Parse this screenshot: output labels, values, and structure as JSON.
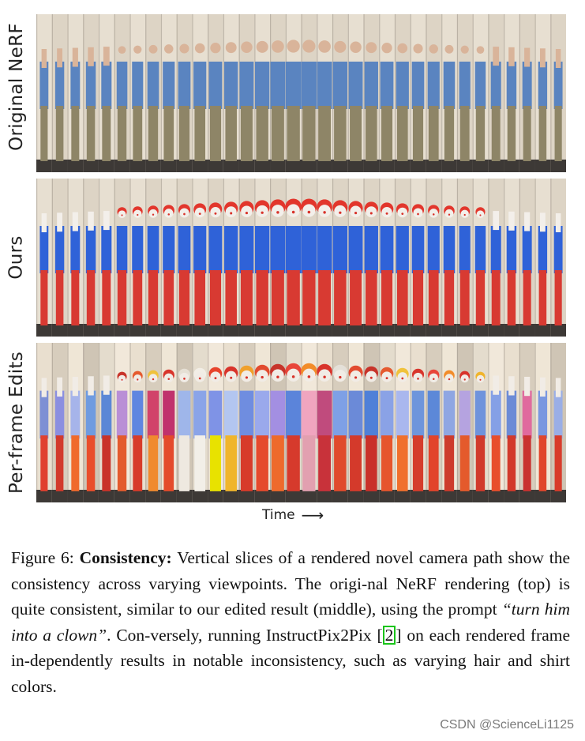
{
  "figure": {
    "rows": [
      {
        "label": "Original NeRF",
        "variant": "original"
      },
      {
        "label": "Ours",
        "variant": "ours"
      },
      {
        "label": "Per-frame Edits",
        "variant": "perframe"
      }
    ],
    "time_label": "Time",
    "slice_count": 34
  },
  "caption": {
    "figure_number": "Figure 6:",
    "title": "Consistency:",
    "text_1": " Vertical slices of a rendered novel camera path show the consistency across varying viewpoints. The origi-nal NeRF rendering (top) is quite consistent, similar to our edited result (middle), using the prompt ",
    "prompt": "“turn him into a clown”",
    "text_2": ". Con-versely, running InstructPix2Pix [",
    "citation": "2",
    "text_3": "] on each rendered frame in-dependently results in notable inconsistency, such as varying hair and shirt colors."
  },
  "colors": {
    "citation_box": "#19c419",
    "original_shirt": "#5a84c0",
    "original_pants": "#8e8567",
    "ours_shirt": "#2f62d8",
    "ours_pants": "#d83a32",
    "background": "#dcd3c4"
  },
  "watermark": "CSDN @ScienceLi1125"
}
